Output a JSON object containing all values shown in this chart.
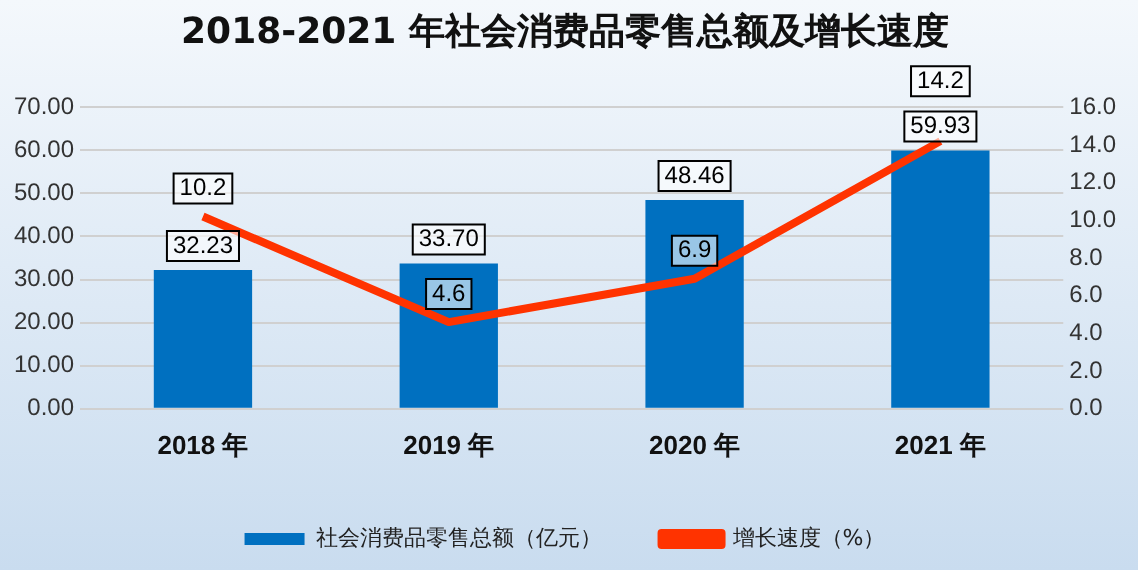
{
  "chart_data": {
    "type": "bar",
    "title": "2018-2021 年社会消费品零售总额及增长速度",
    "categories": [
      "2018 年",
      "2019 年",
      "2020 年",
      "2021 年"
    ],
    "series": [
      {
        "name": "社会消费品零售总额（亿元）",
        "color": "#0070c0",
        "values": [
          32.23,
          33.7,
          48.46,
          59.93
        ],
        "value_labels": [
          "32.23",
          "33.70",
          "48.46",
          "59.93"
        ]
      },
      {
        "name": "增长速度（%）",
        "type": "line",
        "axis": "y2",
        "color": "#ff3300",
        "values": [
          10.2,
          4.6,
          6.9,
          14.2
        ],
        "value_labels": [
          "10.2",
          "4.6",
          "6.9",
          "14.2"
        ]
      }
    ],
    "ylim": [
      0,
      70
    ],
    "yticks": [
      {
        "value": 0,
        "label": "0.00"
      },
      {
        "value": 10,
        "label": "10.00"
      },
      {
        "value": 20,
        "label": "20.00"
      },
      {
        "value": 30,
        "label": "30.00"
      },
      {
        "value": 40,
        "label": "40.00"
      },
      {
        "value": 50,
        "label": "50.00"
      },
      {
        "value": 60,
        "label": "60.00"
      },
      {
        "value": 70,
        "label": "70.00"
      }
    ],
    "y2lim": [
      0,
      16
    ],
    "y2ticks": [
      {
        "value": 0,
        "label": "0.0"
      },
      {
        "value": 2,
        "label": "2.0"
      },
      {
        "value": 4,
        "label": "4.0"
      },
      {
        "value": 6,
        "label": "6.0"
      },
      {
        "value": 8,
        "label": "8.0"
      },
      {
        "value": 10,
        "label": "10.0"
      },
      {
        "value": 12,
        "label": "12.0"
      },
      {
        "value": 14,
        "label": "14.0"
      },
      {
        "value": 16,
        "label": "16.0"
      }
    ],
    "grid": "y",
    "legend": "bottom",
    "marker": "none"
  }
}
